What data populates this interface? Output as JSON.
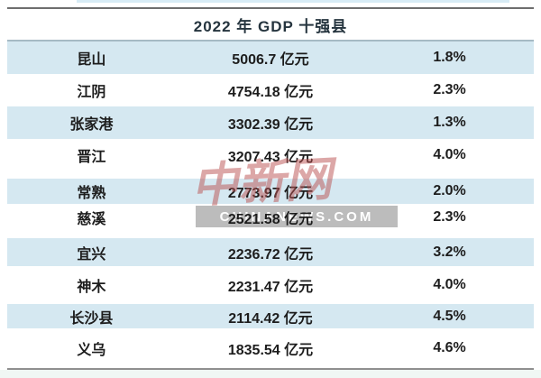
{
  "table": {
    "title": "2022 年 GDP 十强县",
    "rows": [
      {
        "county": "昆山",
        "gdp": "5006.7 亿元",
        "growth": "1.8%"
      },
      {
        "county": "江阴",
        "gdp": "4754.18 亿元",
        "growth": "2.3%"
      },
      {
        "county": "张家港",
        "gdp": "3302.39 亿元",
        "growth": "1.3%"
      },
      {
        "county": "晋江",
        "gdp": "3207.43 亿元",
        "growth": "4.0%"
      },
      {
        "county": "常熟",
        "gdp": "2773.97 亿元",
        "growth": "2.0%"
      },
      {
        "county": "慈溪",
        "gdp": "2521.58 亿元",
        "growth": "2.3%"
      },
      {
        "county": "宜兴",
        "gdp": "2236.72 亿元",
        "growth": "3.2%"
      },
      {
        "county": "神木",
        "gdp": "2231.47 亿元",
        "growth": "4.0%"
      },
      {
        "county": "长沙县",
        "gdp": "2114.42 亿元",
        "growth": "4.5%"
      },
      {
        "county": "义乌",
        "gdp": "1835.54 亿元",
        "growth": "4.6%"
      }
    ]
  },
  "watermark": {
    "calligraphy": "中新网",
    "banner": "CHINANEWS.COM"
  },
  "colors": {
    "row_highlight": "#d5e8f1",
    "watermark_red": "#ba5050",
    "banner_gray": "#b0b0b0",
    "top_border": "#6e6e6e",
    "bottom_border": "#8f8f8f",
    "header_underline": "#a6bac4"
  },
  "chart_data": {
    "type": "table",
    "title": "2022 年 GDP 十强县",
    "categories": [
      "昆山",
      "江阴",
      "张家港",
      "晋江",
      "常熟",
      "慈溪",
      "宜兴",
      "神木",
      "长沙县",
      "义乌"
    ],
    "series": [
      {
        "name": "GDP (亿元)",
        "values": [
          5006.7,
          4754.18,
          3302.39,
          3207.43,
          2773.97,
          2521.58,
          2236.72,
          2231.47,
          2114.42,
          1835.54
        ]
      },
      {
        "name": "%",
        "values": [
          1.8,
          2.3,
          1.3,
          4.0,
          2.0,
          2.3,
          3.2,
          4.0,
          4.5,
          4.6
        ]
      }
    ],
    "legend": false,
    "grid": false
  }
}
